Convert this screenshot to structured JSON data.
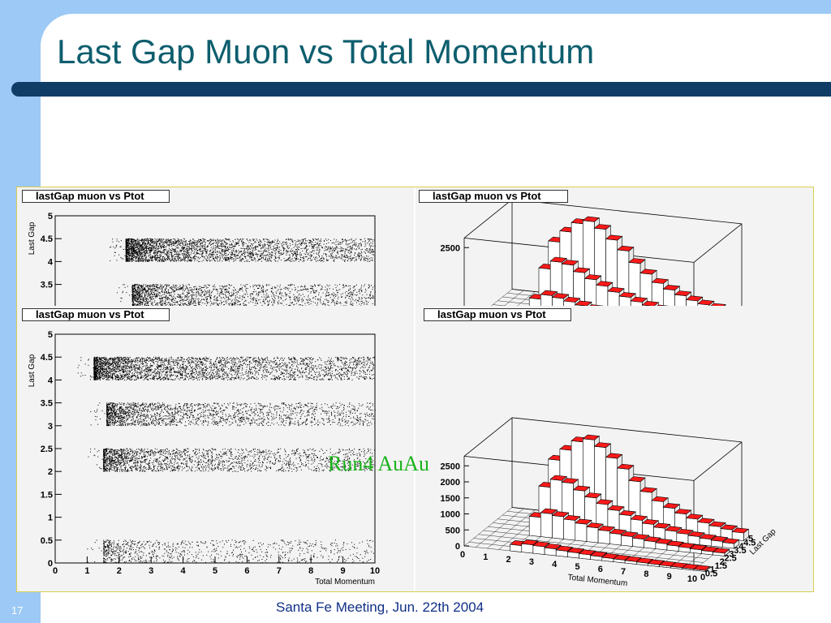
{
  "slide": {
    "title": "Last Gap Muon vs Total Momentum",
    "page_number": "17",
    "footer": "Santa Fe Meeting, Jun. 22th 2004",
    "overlay_label": "Run4 AuAu"
  },
  "chart_data": [
    {
      "type": "scatter",
      "panel": "top-left (partially hidden)",
      "title": "lastGap muon vs Ptot",
      "ylabel": "Last Gap",
      "ylim": [
        0,
        5
      ],
      "y_ticks": [
        "5",
        "4.5",
        "4",
        "3.5"
      ],
      "bands_y": [
        4.2,
        3.2
      ]
    },
    {
      "type": "bar3d",
      "panel": "top-right (partially hidden)",
      "title": "lastGap muon vs Ptot",
      "z_ticks": [
        "2500"
      ]
    },
    {
      "type": "scatter",
      "panel": "bottom-left",
      "title": "lastGap muon vs Ptot",
      "xlabel": "Total Momentum",
      "ylabel": "Last Gap",
      "xlim": [
        0,
        10
      ],
      "ylim": [
        0,
        5
      ],
      "x_ticks": [
        "0",
        "1",
        "2",
        "3",
        "4",
        "5",
        "6",
        "7",
        "8",
        "9",
        "10"
      ],
      "y_ticks": [
        "0",
        "0.5",
        "1",
        "1.5",
        "2",
        "2.5",
        "3",
        "3.5",
        "4",
        "4.5",
        "5"
      ],
      "bands": [
        {
          "y_min": 4.0,
          "y_max": 4.5,
          "x_min": 0.7,
          "x_max": 10,
          "density": "high"
        },
        {
          "y_min": 3.0,
          "y_max": 3.5,
          "x_min": 1.1,
          "x_max": 10,
          "density": "medium"
        },
        {
          "y_min": 2.0,
          "y_max": 2.5,
          "x_min": 1.0,
          "x_max": 10,
          "density": "medium"
        },
        {
          "y_min": 0.0,
          "y_max": 0.5,
          "x_min": 1.0,
          "x_max": 10,
          "density": "low"
        }
      ]
    },
    {
      "type": "bar3d",
      "panel": "bottom-right",
      "title": "lastGap muon vs Ptot",
      "xlabel": "Total Momentum",
      "ylabel": "Last Gap",
      "x_ticks": [
        "0",
        "1",
        "2",
        "3",
        "4",
        "5",
        "6",
        "7",
        "8",
        "9",
        "10"
      ],
      "y_ticks": [
        "0",
        "0.5",
        "1",
        "1.5",
        "2",
        "2.5",
        "3",
        "3.5",
        "4",
        "4.5",
        "5"
      ],
      "z_ticks": [
        "0",
        "500",
        "1000",
        "1500",
        "2000",
        "2500"
      ],
      "zlim": [
        0,
        2800
      ],
      "series": [
        {
          "y": 4.25,
          "values": [
            0,
            0,
            0,
            0,
            1900,
            2250,
            2550,
            2650,
            2450,
            2150,
            1850,
            1500,
            1200,
            950,
            780,
            640,
            520,
            430,
            360,
            300,
            240
          ]
        },
        {
          "y": 3.25,
          "values": [
            0,
            0,
            0,
            0,
            1300,
            1550,
            1500,
            1300,
            1120,
            950,
            800,
            680,
            570,
            480,
            400,
            340,
            290,
            250,
            210,
            180,
            150
          ]
        },
        {
          "y": 2.25,
          "values": [
            0,
            0,
            0,
            0,
            600,
            750,
            700,
            620,
            540,
            460,
            400,
            340,
            300,
            260,
            220,
            190,
            160,
            140,
            120,
            100,
            90
          ]
        },
        {
          "y": 0.25,
          "values": [
            0,
            0,
            0,
            0,
            200,
            260,
            240,
            210,
            180,
            160,
            140,
            120,
            100,
            90,
            80,
            70,
            60,
            50,
            45,
            40,
            35
          ]
        }
      ]
    }
  ]
}
